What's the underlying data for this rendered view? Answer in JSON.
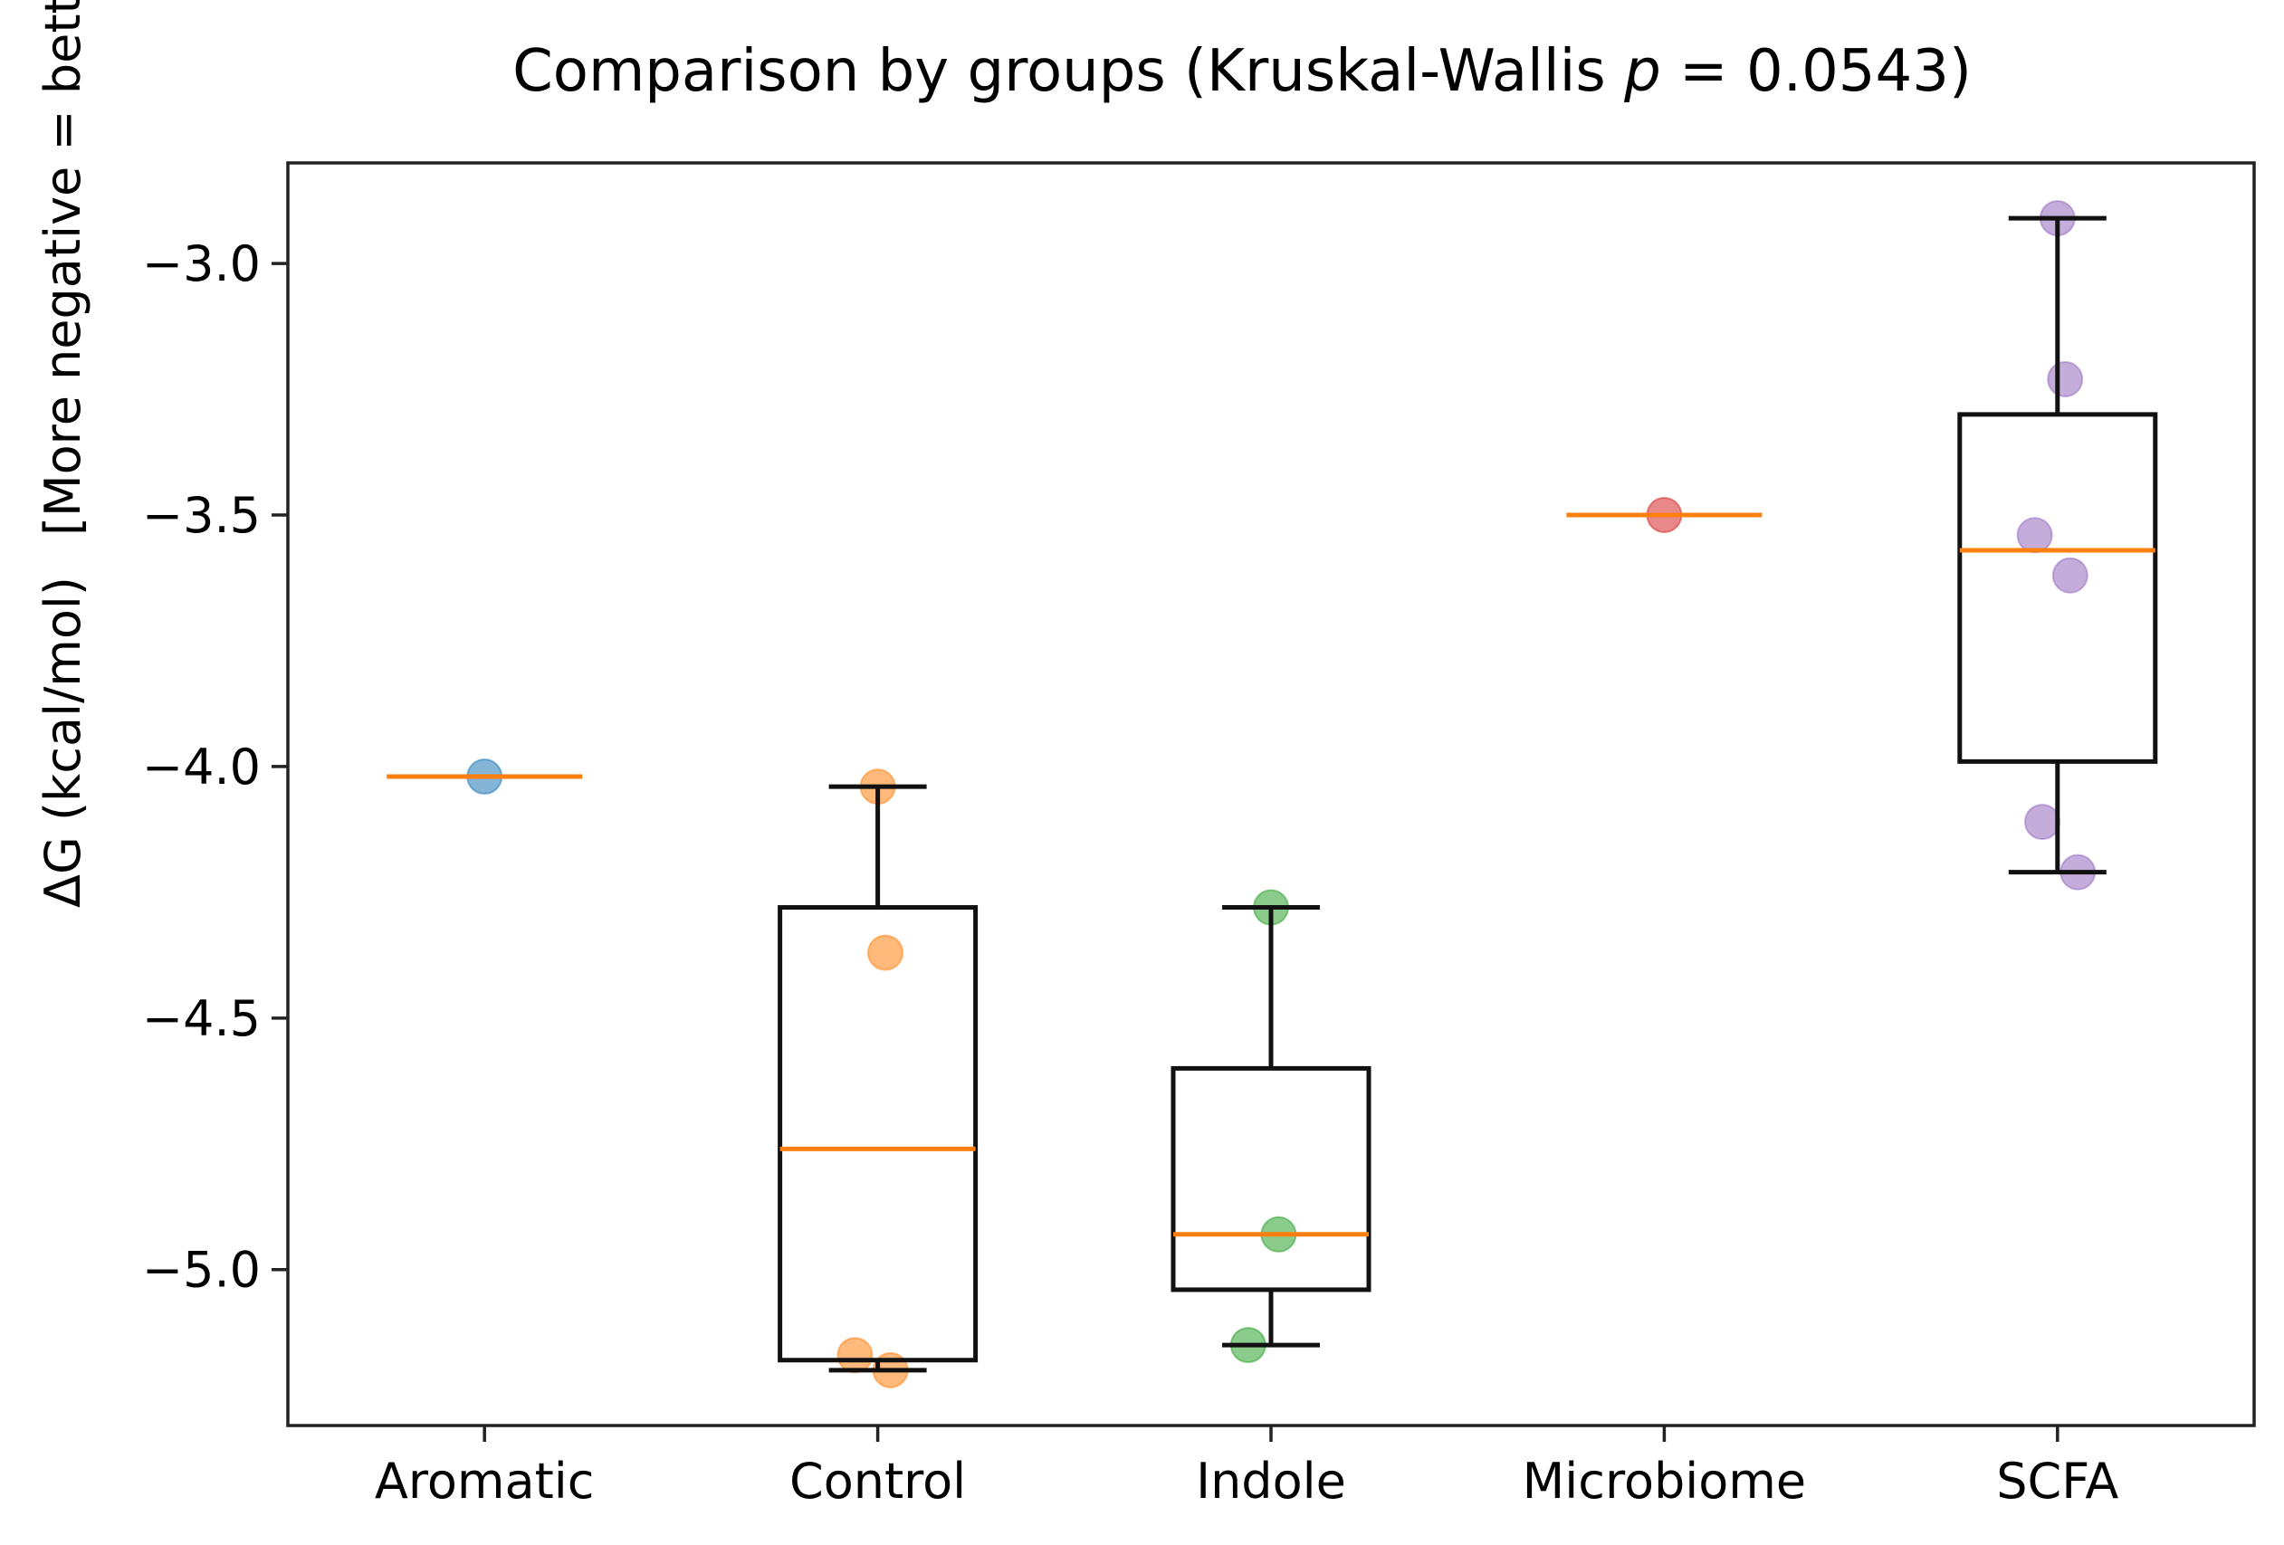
{
  "chart_data": {
    "type": "box",
    "title_prefix": "Comparison by groups (Kruskal-Wallis ",
    "title_p": "p",
    "title_suffix": " = 0.0543)",
    "ylabel_main": "ΔG (kcal/mol)",
    "ylabel_note": "[More negative = better]",
    "xlabel": "",
    "ylim": [
      -5.31,
      -2.8
    ],
    "yticks": [
      -3.0,
      -3.5,
      -4.0,
      -4.5,
      -5.0
    ],
    "ytick_labels": [
      "−3.0",
      "−3.5",
      "−4.0",
      "−4.5",
      "−5.0"
    ],
    "grid": false,
    "categories": [
      "Aromatic",
      "Control",
      "Indole",
      "Microbiome",
      "SCFA"
    ],
    "groups": [
      {
        "name": "Aromatic",
        "color": "#1f77b4",
        "points": [
          -4.02
        ],
        "box": {
          "whisker_low": -4.02,
          "q1": -4.02,
          "median": -4.02,
          "q3": -4.02,
          "whisker_high": -4.02
        }
      },
      {
        "name": "Control",
        "color": "#ff7f0e",
        "points": [
          -4.04,
          -4.37,
          -5.17,
          -5.2
        ],
        "box": {
          "whisker_low": -5.2,
          "q1": -5.18,
          "median": -4.76,
          "q3": -4.28,
          "whisker_high": -4.04
        }
      },
      {
        "name": "Indole",
        "color": "#2ca02c",
        "points": [
          -4.28,
          -4.93,
          -5.15
        ],
        "box": {
          "whisker_low": -5.15,
          "q1": -5.04,
          "median": -4.93,
          "q3": -4.6,
          "whisker_high": -4.28
        }
      },
      {
        "name": "Microbiome",
        "color": "#d62728",
        "points": [
          -3.5
        ],
        "box": {
          "whisker_low": -3.5,
          "q1": -3.5,
          "median": -3.5,
          "q3": -3.5,
          "whisker_high": -3.5
        }
      },
      {
        "name": "SCFA",
        "color": "#9467bd",
        "points": [
          -2.91,
          -3.23,
          -3.54,
          -3.62,
          -4.11,
          -4.21
        ],
        "box": {
          "whisker_low": -4.21,
          "q1": -3.99,
          "median": -3.57,
          "q3": -3.3,
          "whisker_high": -2.91
        }
      }
    ],
    "median_color": "#ff7f0e"
  }
}
